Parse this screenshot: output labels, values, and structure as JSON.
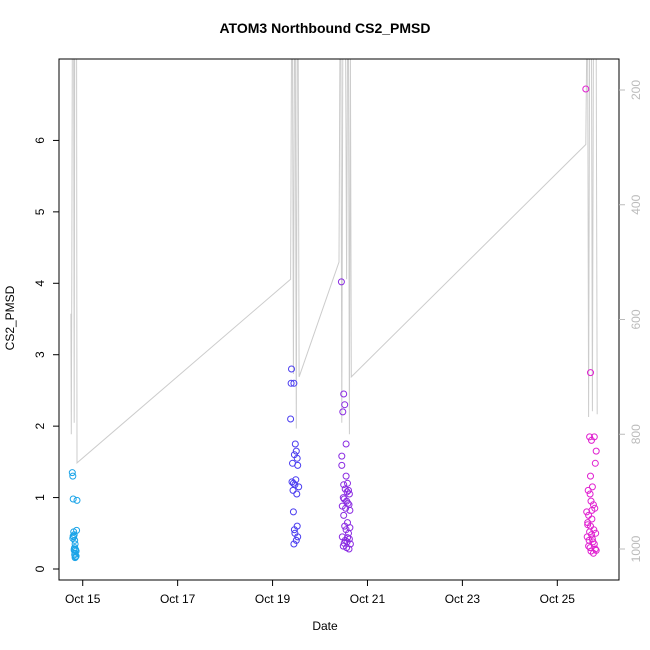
{
  "chart_data": {
    "type": "scatter",
    "title": "ATOM3 Northbound CS2_PMSD",
    "xlabel": "Date",
    "ylabel": "CS2_PMSD",
    "x_ticks": [
      "Oct 15",
      "Oct 17",
      "Oct 19",
      "Oct 21",
      "Oct 23",
      "Oct 25"
    ],
    "x_tick_values": [
      15,
      17,
      19,
      21,
      23,
      25
    ],
    "xlim": [
      14.5,
      26.3
    ],
    "ylim": [
      0,
      7
    ],
    "y_ticks": [
      0,
      1,
      2,
      3,
      4,
      5,
      6
    ],
    "right_axis": {
      "reversed": true,
      "ticks": [
        200,
        400,
        600,
        800,
        1000
      ],
      "range": [
        130,
        1025
      ],
      "color": "#bbbbbb"
    },
    "colors": {
      "line": "#cccccc",
      "axis": "#000000",
      "right_axis": "#bbbbbb"
    },
    "series": [
      {
        "color": "#1ba4e8",
        "x": [
          14.78,
          14.79,
          14.8,
          14.81,
          14.8,
          14.79,
          14.82,
          14.83,
          14.84,
          14.83,
          14.82,
          14.85,
          14.86,
          14.84,
          14.83,
          14.86,
          14.85,
          14.84,
          14.87,
          14.82,
          14.81,
          14.88
        ],
        "y": [
          1.35,
          1.3,
          0.98,
          0.52,
          0.46,
          0.43,
          0.48,
          0.4,
          0.35,
          0.3,
          0.28,
          0.27,
          0.25,
          0.22,
          0.2,
          0.18,
          0.17,
          0.16,
          0.54,
          0.26,
          0.45,
          0.96
        ]
      },
      {
        "color": "#4a3cf0",
        "x": [
          19.38,
          19.39,
          19.45,
          19.4,
          19.48,
          19.5,
          19.52,
          19.46,
          19.53,
          19.42,
          19.44,
          19.47,
          19.55,
          19.41,
          19.43,
          19.49,
          19.51,
          19.44,
          19.46,
          19.52,
          19.47,
          19.53,
          19.5,
          19.45
        ],
        "y": [
          2.1,
          2.6,
          2.6,
          2.8,
          1.75,
          1.65,
          1.55,
          1.6,
          1.45,
          1.48,
          1.2,
          1.18,
          1.15,
          1.22,
          1.1,
          1.25,
          1.05,
          0.8,
          0.55,
          0.6,
          0.5,
          0.45,
          0.4,
          0.35
        ]
      },
      {
        "color": "#8a2be2",
        "x": [
          20.45,
          20.46,
          20.5,
          20.52,
          20.48,
          20.55,
          20.58,
          20.6,
          20.62,
          20.5,
          20.53,
          20.57,
          20.49,
          20.51,
          20.56,
          20.59,
          20.61,
          20.47,
          20.54,
          20.63,
          20.5,
          20.58,
          20.52,
          20.55,
          20.6,
          20.47,
          20.62,
          20.53,
          20.57,
          20.64,
          20.49,
          20.56,
          20.61,
          20.51,
          20.58,
          20.63,
          20.46,
          20.55
        ],
        "y": [
          4.02,
          1.58,
          2.45,
          2.3,
          2.2,
          1.75,
          1.2,
          1.1,
          1.05,
          1.18,
          1.12,
          1.08,
          1.0,
          0.98,
          0.95,
          0.92,
          0.9,
          0.88,
          0.85,
          0.82,
          0.75,
          0.65,
          0.6,
          0.55,
          0.5,
          0.45,
          0.42,
          0.4,
          0.38,
          0.35,
          0.32,
          0.3,
          0.28,
          0.36,
          0.44,
          0.58,
          1.45,
          1.3
        ]
      },
      {
        "color": "#e020d0",
        "x": [
          25.6,
          25.7,
          25.68,
          25.72,
          25.78,
          25.82,
          25.65,
          25.69,
          25.74,
          25.8,
          25.62,
          25.66,
          25.71,
          25.76,
          25.79,
          25.64,
          25.7,
          25.73,
          25.77,
          25.81,
          25.63,
          25.67,
          25.72,
          25.75,
          25.78,
          25.66,
          25.69,
          25.74,
          25.8,
          25.64,
          25.68,
          25.71,
          25.76,
          25.82,
          25.7,
          25.73
        ],
        "y": [
          6.72,
          2.75,
          1.85,
          1.8,
          1.85,
          1.65,
          1.1,
          1.05,
          1.15,
          1.48,
          0.8,
          0.75,
          0.95,
          0.9,
          0.85,
          0.65,
          0.6,
          0.7,
          0.55,
          0.5,
          0.45,
          0.4,
          0.48,
          0.38,
          0.35,
          0.32,
          0.3,
          0.42,
          0.28,
          0.62,
          0.52,
          0.25,
          0.22,
          0.26,
          1.3,
          0.82
        ]
      }
    ],
    "line": {
      "x": [
        14.75,
        14.76,
        14.77,
        14.78,
        14.79,
        14.8,
        14.81,
        14.82,
        14.83,
        14.84,
        14.85,
        14.86,
        14.87,
        14.88,
        19.38,
        19.4,
        19.42,
        19.44,
        19.46,
        19.48,
        19.5,
        19.52,
        19.54,
        19.56,
        20.4,
        20.42,
        20.44,
        20.46,
        20.48,
        20.5,
        20.52,
        20.54,
        20.56,
        20.58,
        20.6,
        20.62,
        20.64,
        20.66,
        25.6,
        25.62,
        25.64,
        25.66,
        25.68,
        25.7,
        25.72,
        25.74,
        25.76,
        25.78,
        25.8,
        25.82,
        25.84
      ],
      "y": [
        590,
        800,
        520,
        130,
        130,
        130,
        130,
        780,
        130,
        130,
        130,
        130,
        130,
        850,
        530,
        130,
        130,
        695,
        130,
        130,
        790,
        130,
        130,
        700,
        500,
        130,
        130,
        780,
        130,
        130,
        130,
        130,
        530,
        130,
        130,
        800,
        130,
        700,
        295,
        130,
        130,
        770,
        130,
        130,
        130,
        760,
        130,
        130,
        130,
        130,
        765
      ]
    }
  }
}
